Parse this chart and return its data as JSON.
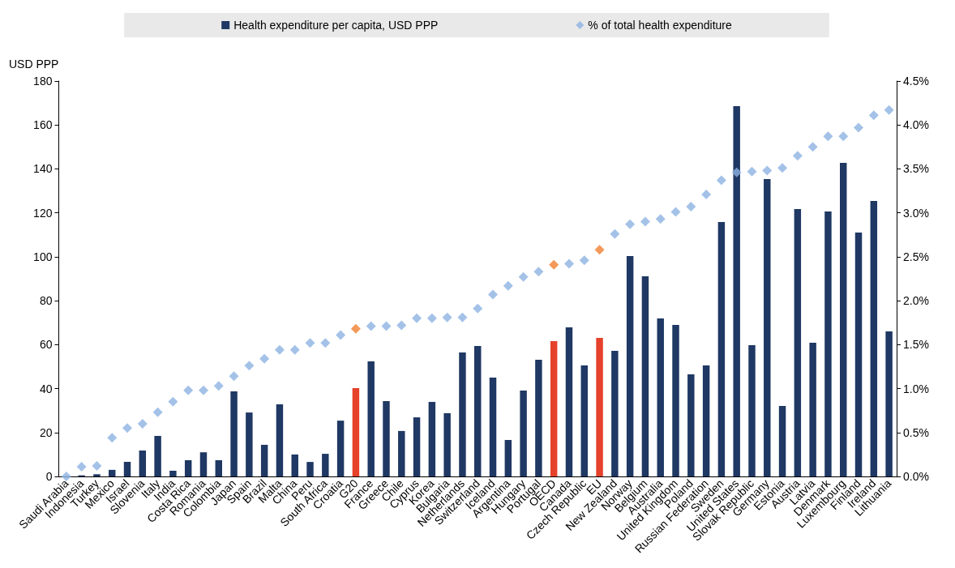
{
  "chart_data": {
    "type": "bar",
    "ylabel": "USD PPP",
    "legend": "top",
    "grid": false,
    "marker": "diamond",
    "categories": [
      "Saudi Arabia",
      "Indonesia",
      "Turkey",
      "Mexico",
      "Israel",
      "Slovenia",
      "Italy",
      "India",
      "Costa Rica",
      "Romania",
      "Colombia",
      "Japan",
      "Spain",
      "Brazil",
      "Malta",
      "China",
      "Peru",
      "South Africa",
      "Croatia",
      "G20",
      "France",
      "Greece",
      "Chile",
      "Cyprus",
      "Korea",
      "Bulgaria",
      "Netherlands",
      "Switzerland",
      "Iceland",
      "Argentina",
      "Hungary",
      "Portugal",
      "OECD",
      "Canada",
      "Czech Republic",
      "EU",
      "New Zealand",
      "Norway",
      "Belgium",
      "Australia",
      "United Kingdom",
      "Poland",
      "Russian Federation",
      "Sweden",
      "United States",
      "Slovak Republic",
      "Germany",
      "Estonia",
      "Austria",
      "Latvia",
      "Denmark",
      "Luxembourg",
      "Finland",
      "Ireland",
      "Lithuania"
    ],
    "ylim": [
      0,
      180
    ],
    "yticks": [
      0,
      20,
      40,
      60,
      80,
      100,
      120,
      140,
      160,
      180
    ],
    "y2lim": [
      0,
      4.5
    ],
    "y2ticks": [
      {
        "value": 0,
        "label": "0.0%"
      },
      {
        "value": 0.5,
        "label": "0.5%"
      },
      {
        "value": 1,
        "label": "1.0%"
      },
      {
        "value": 1.5,
        "label": "1.5%"
      },
      {
        "value": 2,
        "label": "2.0%"
      },
      {
        "value": 2.5,
        "label": "2.5%"
      },
      {
        "value": 3,
        "label": "3.0%"
      },
      {
        "value": 3.5,
        "label": "3.5%"
      },
      {
        "value": 4,
        "label": "4.0%"
      },
      {
        "value": 4.5,
        "label": "4.5%"
      }
    ],
    "series": [
      {
        "name": "Health expenditure per capita, USD PPP",
        "color": "#1f3864",
        "colors": [
          "#1f3864",
          "#1f3864",
          "#1f3864",
          "#1f3864",
          "#1f3864",
          "#1f3864",
          "#1f3864",
          "#1f3864",
          "#1f3864",
          "#1f3864",
          "#1f3864",
          "#1f3864",
          "#1f3864",
          "#1f3864",
          "#1f3864",
          "#1f3864",
          "#1f3864",
          "#1f3864",
          "#1f3864",
          "#e5412b",
          "#1f3864",
          "#1f3864",
          "#1f3864",
          "#1f3864",
          "#1f3864",
          "#1f3864",
          "#1f3864",
          "#1f3864",
          "#1f3864",
          "#1f3864",
          "#1f3864",
          "#1f3864",
          "#e5412b",
          "#1f3864",
          "#1f3864",
          "#e5412b",
          "#1f3864",
          "#1f3864",
          "#1f3864",
          "#1f3864",
          "#1f3864",
          "#1f3864",
          "#1f3864",
          "#1f3864",
          "#1f3864",
          "#1f3864",
          "#1f3864",
          "#1f3864",
          "#1f3864",
          "#1f3864",
          "#1f3864",
          "#1f3864",
          "#1f3864",
          "#1f3864",
          "#1f3864"
        ],
        "values": [
          0,
          0.5,
          1,
          3,
          6.6,
          11.8,
          18.4,
          2.6,
          7.4,
          11,
          7.4,
          38.7,
          29.1,
          14.4,
          32.8,
          10,
          6.6,
          10.3,
          25.4,
          40.2,
          52.4,
          34.3,
          20.7,
          26.9,
          33.9,
          28.8,
          56.4,
          59.4,
          45,
          16.6,
          39.1,
          53.1,
          61.6,
          67.9,
          50.5,
          63.1,
          57.2,
          100.3,
          91.1,
          71.9,
          69,
          46.5,
          50.5,
          115.8,
          168.6,
          59.8,
          135.4,
          32.1,
          121.7,
          60.9,
          120.6,
          142.7,
          111,
          125.4,
          66
        ]
      },
      {
        "name": "% of total health expenditure",
        "type": "scatter",
        "axis": "y2",
        "color": "#8db3e2",
        "colors": [
          "#8db3e2",
          "#8db3e2",
          "#8db3e2",
          "#8db3e2",
          "#8db3e2",
          "#8db3e2",
          "#8db3e2",
          "#8db3e2",
          "#8db3e2",
          "#8db3e2",
          "#8db3e2",
          "#8db3e2",
          "#8db3e2",
          "#8db3e2",
          "#8db3e2",
          "#8db3e2",
          "#8db3e2",
          "#8db3e2",
          "#8db3e2",
          "#f07f2f",
          "#8db3e2",
          "#8db3e2",
          "#8db3e2",
          "#8db3e2",
          "#8db3e2",
          "#8db3e2",
          "#8db3e2",
          "#8db3e2",
          "#8db3e2",
          "#8db3e2",
          "#8db3e2",
          "#8db3e2",
          "#f07f2f",
          "#8db3e2",
          "#8db3e2",
          "#f07f2f",
          "#8db3e2",
          "#8db3e2",
          "#8db3e2",
          "#8db3e2",
          "#8db3e2",
          "#8db3e2",
          "#8db3e2",
          "#8db3e2",
          "#8db3e2",
          "#8db3e2",
          "#8db3e2",
          "#8db3e2",
          "#8db3e2",
          "#8db3e2",
          "#8db3e2",
          "#8db3e2",
          "#8db3e2",
          "#8db3e2",
          "#8db3e2"
        ],
        "values": [
          0,
          0.11,
          0.12,
          0.44,
          0.55,
          0.6,
          0.73,
          0.85,
          0.98,
          0.98,
          1.03,
          1.14,
          1.26,
          1.34,
          1.44,
          1.44,
          1.52,
          1.52,
          1.61,
          1.68,
          1.71,
          1.71,
          1.72,
          1.8,
          1.8,
          1.81,
          1.81,
          1.91,
          2.07,
          2.17,
          2.27,
          2.33,
          2.41,
          2.42,
          2.46,
          2.58,
          2.76,
          2.87,
          2.9,
          2.93,
          3.01,
          3.07,
          3.21,
          3.37,
          3.46,
          3.47,
          3.48,
          3.51,
          3.65,
          3.75,
          3.87,
          3.87,
          3.97,
          4.11,
          4.17
        ]
      }
    ]
  }
}
